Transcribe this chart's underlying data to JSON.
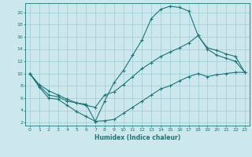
{
  "xlabel": "Humidex (Indice chaleur)",
  "bg_color": "#cce8ec",
  "grid_color": "#9fcdd4",
  "line_color": "#1a7878",
  "xlim": [
    -0.5,
    23.5
  ],
  "ylim": [
    1.5,
    21.5
  ],
  "xticks": [
    0,
    1,
    2,
    3,
    4,
    5,
    6,
    7,
    8,
    9,
    10,
    11,
    12,
    13,
    14,
    15,
    16,
    17,
    18,
    19,
    20,
    21,
    22,
    23
  ],
  "yticks": [
    2,
    4,
    6,
    8,
    10,
    12,
    14,
    16,
    18,
    20
  ],
  "line1_x": [
    0,
    1,
    2,
    3,
    4,
    5,
    6,
    7,
    8,
    9,
    10,
    11,
    12,
    13,
    14,
    15,
    16,
    17,
    18,
    19,
    20,
    21,
    22,
    23
  ],
  "line1_y": [
    10,
    7.8,
    6.0,
    5.8,
    4.8,
    3.8,
    3.0,
    2.2,
    5.5,
    8.5,
    10.5,
    13.0,
    15.5,
    19.0,
    20.5,
    21.0,
    20.8,
    20.2,
    16.2,
    14.0,
    13.0,
    12.5,
    12.0,
    10.2
  ],
  "line2_x": [
    0,
    1,
    2,
    3,
    4,
    5,
    6,
    7,
    8,
    9,
    10,
    11,
    12,
    13,
    14,
    15,
    16,
    17,
    18,
    19,
    20,
    21,
    22,
    23
  ],
  "line2_y": [
    10,
    8.2,
    7.2,
    6.5,
    5.8,
    5.2,
    4.8,
    4.5,
    6.5,
    7.0,
    8.2,
    9.5,
    10.8,
    11.8,
    12.8,
    13.5,
    14.2,
    15.0,
    16.2,
    14.2,
    13.8,
    13.2,
    12.8,
    10.2
  ],
  "line3_x": [
    0,
    1,
    2,
    3,
    4,
    5,
    6,
    7,
    8,
    9,
    10,
    11,
    12,
    13,
    14,
    15,
    16,
    17,
    18,
    19,
    20,
    21,
    22,
    23
  ],
  "line3_y": [
    10,
    8.0,
    6.5,
    6.2,
    5.5,
    5.2,
    5.0,
    2.2,
    2.3,
    2.5,
    3.5,
    4.5,
    5.5,
    6.5,
    7.5,
    8.0,
    8.8,
    9.5,
    10.0,
    9.5,
    9.8,
    10.0,
    10.2,
    10.2
  ]
}
